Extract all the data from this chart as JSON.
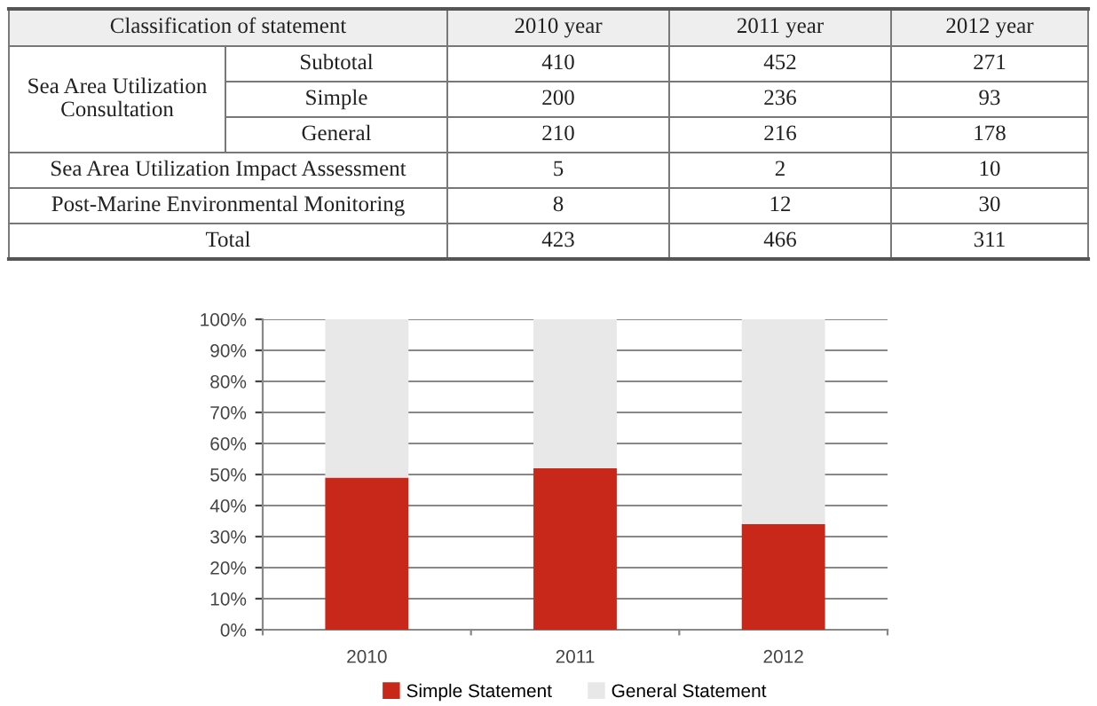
{
  "chart_data": [
    {
      "type": "other",
      "annotations": [
        "Classification of statement",
        "2010 year",
        "2011 year",
        "2012 year",
        "Sea Area Utilization\nConsultation",
        "Subtotal",
        "410",
        "452",
        "271",
        "Simple",
        "200",
        "236",
        "93",
        "General",
        "210",
        "216",
        "178",
        "Sea Area Utilization Impact Assessment",
        "5",
        "2",
        "10",
        "Post-Marine Environmental Monitoring",
        "8",
        "12",
        "30",
        "Total",
        "423",
        "466",
        "311"
      ]
    },
    {
      "type": "bar",
      "stacked": true,
      "categories": [
        "2010",
        "2011",
        "2012"
      ],
      "series": [
        {
          "name": "Simple Statement",
          "color": "#c8281a",
          "values": [
            49,
            52,
            34
          ]
        },
        {
          "name": "General Statement",
          "color": "#e8e8e8",
          "values": [
            51,
            48,
            66
          ]
        }
      ],
      "ylim": [
        0,
        100
      ],
      "yticks": [
        {
          "value": 0,
          "label": "0%"
        },
        {
          "value": 10,
          "label": "10%"
        },
        {
          "value": 20,
          "label": "20%"
        },
        {
          "value": 30,
          "label": "30%"
        },
        {
          "value": 40,
          "label": "40%"
        },
        {
          "value": 50,
          "label": "50%"
        },
        {
          "value": 60,
          "label": "60%"
        },
        {
          "value": 70,
          "label": "70%"
        },
        {
          "value": 80,
          "label": "80%"
        },
        {
          "value": 90,
          "label": "90%"
        },
        {
          "value": 100,
          "label": "100%"
        }
      ],
      "grid": "y",
      "legend": "bottom"
    }
  ]
}
